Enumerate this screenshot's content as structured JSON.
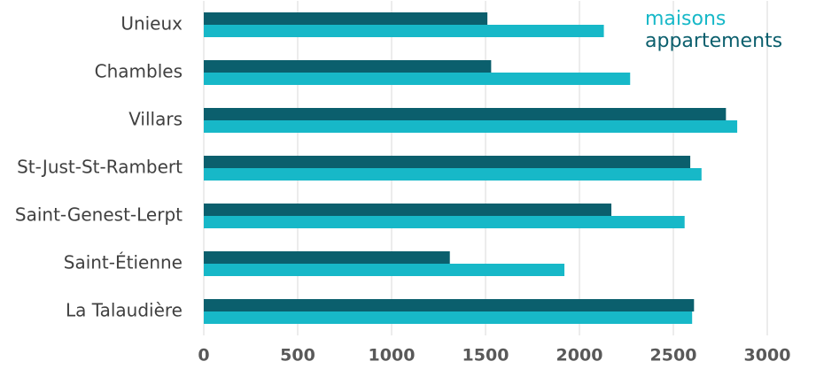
{
  "chart_data": {
    "type": "bar",
    "orientation": "horizontal",
    "categories": [
      "Unieux",
      "Chambles",
      "Villars",
      "St-Just-St-Rambert",
      "Saint-Genest-Lerpt",
      "Saint-Étienne",
      "La Talaudière"
    ],
    "series": [
      {
        "name": "appartements",
        "color": "#0b5f6d",
        "values": [
          1510,
          1530,
          2780,
          2590,
          2170,
          1310,
          2610
        ]
      },
      {
        "name": "maisons",
        "color": "#17b8c8",
        "values": [
          2130,
          2270,
          2840,
          2650,
          2560,
          1920,
          2600
        ]
      }
    ],
    "xlim": [
      0,
      3250
    ],
    "xticks": [
      0,
      500,
      1000,
      1500,
      2000,
      2500,
      3000
    ],
    "grid": true,
    "legend": "top-right"
  }
}
